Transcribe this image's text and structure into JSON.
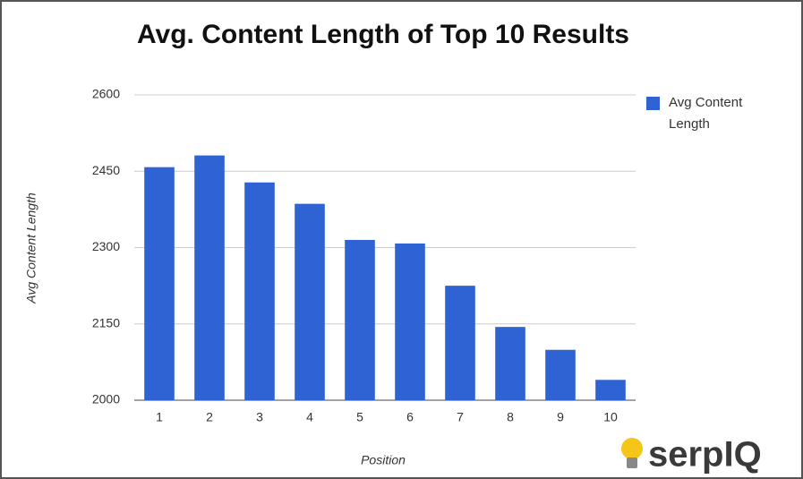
{
  "chart_data": {
    "type": "bar",
    "title": "Avg. Content Length of Top 10 Results",
    "x_label": "Position",
    "y_label": "Avg Content Length",
    "logo": "serpIQ",
    "categories": [
      "1",
      "2",
      "3",
      "4",
      "5",
      "6",
      "7",
      "8",
      "9",
      "10"
    ],
    "series": [
      {
        "name": "Avg Content Length",
        "color": "#2f62d3",
        "values": [
          2458,
          2481,
          2428,
          2386,
          2315,
          2308,
          2225,
          2144,
          2099,
          2040
        ]
      }
    ],
    "ylim": [
      2000,
      2600
    ],
    "yticks": [
      2000,
      2150,
      2300,
      2450,
      2600
    ],
    "grid": true,
    "legend": "right"
  }
}
